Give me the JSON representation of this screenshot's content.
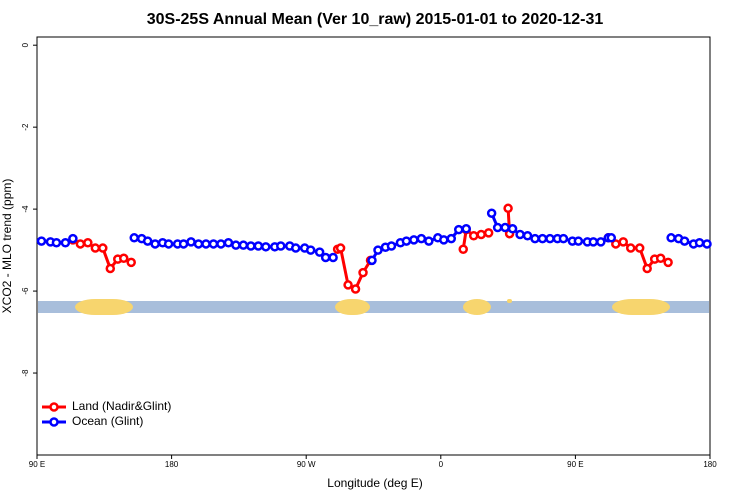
{
  "chart_data": {
    "type": "line",
    "title": "30S-25S Annual Mean (Ver 10_raw)   2015-01-01 to 2020-12-31",
    "x_label": "Longitude (deg E)",
    "y_label": "XCO2 - MLO trend (ppm)",
    "xlim": [
      90,
      540
    ],
    "xticks": [
      {
        "value": 90,
        "label": "90 E"
      },
      {
        "value": 180,
        "label": "180"
      },
      {
        "value": 270,
        "label": "90 W"
      },
      {
        "value": 360,
        "label": "0"
      },
      {
        "value": 450,
        "label": "90 E"
      },
      {
        "value": 540,
        "label": "180"
      }
    ],
    "ylim": [
      -10,
      0.2
    ],
    "yticks": [
      0,
      -2,
      -4,
      -6,
      -8
    ],
    "legend": "bottom-left",
    "series": [
      {
        "name": "Land (Nadir&Glint)",
        "color": "#ff0000",
        "x": [
          114,
          119,
          124,
          129,
          134,
          139,
          144,
          148,
          153,
          null,
          291,
          293,
          298,
          303,
          308,
          313,
          null,
          375,
          377,
          382,
          387,
          392,
          null,
          405,
          406,
          null,
          472,
          477,
          482,
          487,
          493,
          498,
          503,
          507,
          512
        ],
        "values": [
          -4.75,
          -4.85,
          -4.82,
          -4.95,
          -4.95,
          -5.45,
          -5.22,
          -5.2,
          -5.3,
          null,
          -4.98,
          -4.95,
          -5.85,
          -5.95,
          -5.55,
          -5.25,
          null,
          -4.98,
          -4.5,
          -4.65,
          -4.62,
          -4.58,
          null,
          -3.98,
          -4.6,
          null,
          -4.7,
          -4.85,
          -4.8,
          -4.95,
          -4.95,
          -5.45,
          -5.22,
          -5.2,
          -5.3
        ]
      },
      {
        "name": "Ocean (Glint)",
        "color": "#0000ff",
        "x": [
          93,
          99,
          103,
          109,
          114,
          null,
          155,
          160,
          164,
          169,
          174,
          178,
          184,
          188,
          193,
          198,
          203,
          208,
          213,
          218,
          223,
          228,
          233,
          238,
          243,
          249,
          253,
          259,
          263,
          269,
          273,
          279,
          283,
          288,
          null,
          314,
          318,
          323,
          327,
          333,
          337,
          342,
          347,
          352,
          358,
          362,
          367,
          372,
          377,
          null,
          394,
          398,
          403,
          408,
          413,
          418,
          423,
          428,
          433,
          438,
          442,
          448,
          452,
          458,
          462,
          467,
          472,
          474,
          null,
          514,
          519,
          523,
          529,
          533,
          538
        ],
        "values": [
          -4.78,
          -4.8,
          -4.82,
          -4.82,
          -4.72,
          null,
          -4.7,
          -4.72,
          -4.78,
          -4.85,
          -4.82,
          -4.85,
          -4.85,
          -4.85,
          -4.8,
          -4.85,
          -4.85,
          -4.85,
          -4.85,
          -4.82,
          -4.88,
          -4.88,
          -4.9,
          -4.9,
          -4.92,
          -4.92,
          -4.9,
          -4.9,
          -4.95,
          -4.95,
          -5.0,
          -5.05,
          -5.18,
          -5.18,
          null,
          -5.25,
          -5.0,
          -4.93,
          -4.9,
          -4.82,
          -4.78,
          -4.75,
          -4.72,
          -4.78,
          -4.7,
          -4.75,
          -4.72,
          -4.5,
          -4.48,
          null,
          -4.1,
          -4.45,
          -4.45,
          -4.48,
          -4.62,
          -4.65,
          -4.72,
          -4.72,
          -4.72,
          -4.72,
          -4.72,
          -4.78,
          -4.78,
          -4.8,
          -4.8,
          -4.8,
          -4.7,
          -4.7,
          null,
          -4.7,
          -4.72,
          -4.78,
          -4.85,
          -4.82,
          -4.85
        ]
      }
    ]
  }
}
